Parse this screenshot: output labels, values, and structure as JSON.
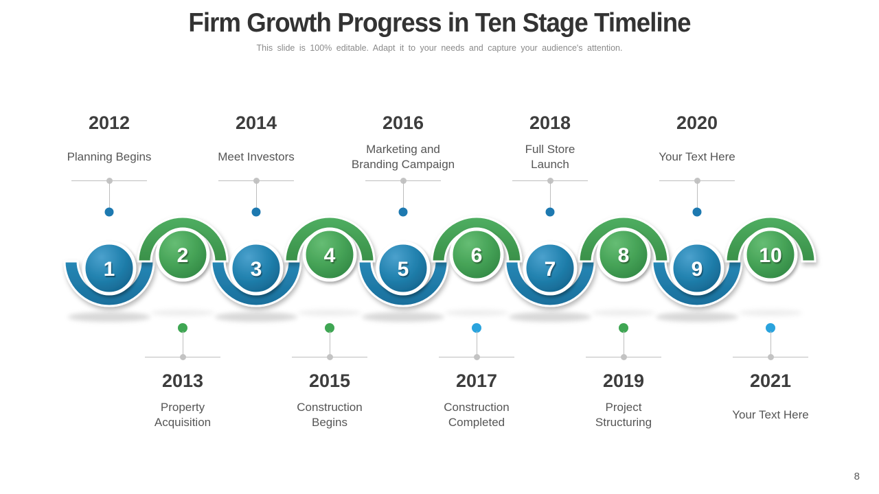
{
  "slide": {
    "title": "Firm Growth Progress in Ten Stage Timeline",
    "subtitle": "This slide is 100% editable. Adapt it to your needs and capture your audience's attention.",
    "page_number": "8"
  },
  "colors": {
    "stage_blue": "#1f7dab",
    "stage_green": "#46a357",
    "dot_blue": "#1d79b0",
    "dot_green": "#3fa653",
    "dot_light_blue": "#2aa3dd",
    "connector_gray": "#bdbdbd",
    "title_text": "#333333",
    "body_text": "#555555"
  },
  "timeline": {
    "top_items": [
      {
        "year": "2012",
        "label": "Planning Begins",
        "dot_color": "#1d79b0"
      },
      {
        "year": "2014",
        "label": "Meet Investors",
        "dot_color": "#1d79b0"
      },
      {
        "year": "2016",
        "label": "Marketing and Branding Campaign",
        "dot_color": "#1d79b0"
      },
      {
        "year": "2018",
        "label": "Full Store Launch",
        "dot_color": "#1d79b0"
      },
      {
        "year": "2020",
        "label": "Your Text Here",
        "dot_color": "#1d79b0"
      }
    ],
    "bottom_items": [
      {
        "year": "2013",
        "label": "Property Acquisition",
        "dot_color": "#3fa653"
      },
      {
        "year": "2015",
        "label": "Construction Begins",
        "dot_color": "#3fa653"
      },
      {
        "year": "2017",
        "label": "Construction Completed",
        "dot_color": "#2aa3dd"
      },
      {
        "year": "2019",
        "label": "Project Structuring",
        "dot_color": "#3fa653"
      },
      {
        "year": "2021",
        "label": "Your Text Here",
        "dot_color": "#2aa3dd"
      }
    ],
    "stages": [
      {
        "number": "1",
        "color": "blue"
      },
      {
        "number": "2",
        "color": "green"
      },
      {
        "number": "3",
        "color": "blue"
      },
      {
        "number": "4",
        "color": "green"
      },
      {
        "number": "5",
        "color": "blue"
      },
      {
        "number": "6",
        "color": "green"
      },
      {
        "number": "7",
        "color": "blue"
      },
      {
        "number": "8",
        "color": "green"
      },
      {
        "number": "9",
        "color": "blue"
      },
      {
        "number": "10",
        "color": "green"
      }
    ]
  }
}
